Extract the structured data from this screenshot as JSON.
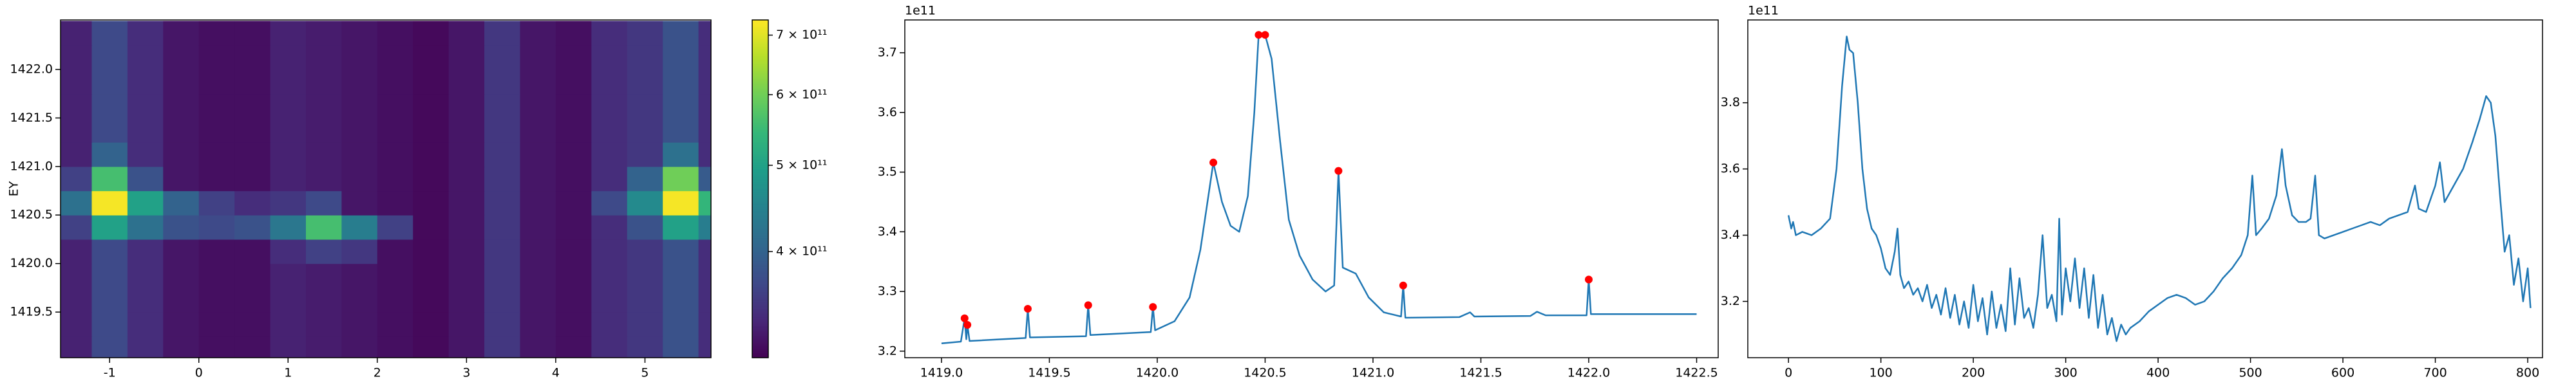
{
  "chart_data": [
    {
      "type": "heatmap",
      "colormap": "viridis",
      "ylabel": "EY",
      "xlim": [
        -1.55,
        5.74
      ],
      "ylim": [
        1419.03,
        1422.51
      ],
      "xticks": [
        -1,
        0,
        1,
        2,
        3,
        4,
        5
      ],
      "yticks": [
        1419.5,
        {
          "value": 1420,
          "label": "1420.0"
        },
        1420.5,
        {
          "value": 1421,
          "label": "1421.0"
        },
        1421.5,
        {
          "value": 1422,
          "label": "1422.0"
        }
      ],
      "x": [
        -1.4,
        -1.0,
        -0.6,
        -0.2,
        0.2,
        0.6,
        1.0,
        1.4,
        1.8,
        2.2,
        2.6,
        3.0,
        3.4,
        3.8,
        4.2,
        4.6,
        5.0,
        5.4,
        5.8
      ],
      "y": [
        1419.125,
        1419.375,
        1419.625,
        1419.875,
        1420.125,
        1420.375,
        1420.625,
        1420.875,
        1421.125,
        1421.375,
        1421.625,
        1421.875,
        1422.125,
        1422.375
      ],
      "z": [
        [
          330000000000.0,
          370000000000.0,
          340000000000.0,
          320000000000.0,
          315000000000.0,
          315000000000.0,
          330000000000.0,
          325000000000.0,
          320000000000.0,
          315000000000.0,
          310000000000.0,
          320000000000.0,
          350000000000.0,
          320000000000.0,
          315000000000.0,
          340000000000.0,
          350000000000.0,
          380000000000.0,
          340000000000.0
        ],
        [
          330000000000.0,
          370000000000.0,
          340000000000.0,
          320000000000.0,
          315000000000.0,
          315000000000.0,
          330000000000.0,
          325000000000.0,
          320000000000.0,
          315000000000.0,
          310000000000.0,
          320000000000.0,
          350000000000.0,
          320000000000.0,
          315000000000.0,
          340000000000.0,
          350000000000.0,
          380000000000.0,
          340000000000.0
        ],
        [
          330000000000.0,
          370000000000.0,
          340000000000.0,
          320000000000.0,
          315000000000.0,
          315000000000.0,
          330000000000.0,
          325000000000.0,
          320000000000.0,
          315000000000.0,
          310000000000.0,
          320000000000.0,
          350000000000.0,
          320000000000.0,
          315000000000.0,
          340000000000.0,
          350000000000.0,
          380000000000.0,
          340000000000.0
        ],
        [
          330000000000.0,
          370000000000.0,
          340000000000.0,
          320000000000.0,
          315000000000.0,
          315000000000.0,
          330000000000.0,
          325000000000.0,
          320000000000.0,
          315000000000.0,
          310000000000.0,
          320000000000.0,
          350000000000.0,
          320000000000.0,
          315000000000.0,
          340000000000.0,
          350000000000.0,
          380000000000.0,
          340000000000.0
        ],
        [
          330000000000.0,
          370000000000.0,
          340000000000.0,
          320000000000.0,
          315000000000.0,
          315000000000.0,
          340000000000.0,
          360000000000.0,
          350000000000.0,
          315000000000.0,
          310000000000.0,
          320000000000.0,
          350000000000.0,
          320000000000.0,
          315000000000.0,
          340000000000.0,
          350000000000.0,
          380000000000.0,
          340000000000.0
        ],
        [
          360000000000.0,
          500000000000.0,
          420000000000.0,
          380000000000.0,
          370000000000.0,
          380000000000.0,
          430000000000.0,
          560000000000.0,
          440000000000.0,
          360000000000.0,
          310000000000.0,
          320000000000.0,
          350000000000.0,
          320000000000.0,
          315000000000.0,
          340000000000.0,
          380000000000.0,
          500000000000.0,
          440000000000.0
        ],
        [
          420000000000.0,
          720000000000.0,
          500000000000.0,
          400000000000.0,
          360000000000.0,
          340000000000.0,
          350000000000.0,
          370000000000.0,
          320000000000.0,
          315000000000.0,
          310000000000.0,
          320000000000.0,
          350000000000.0,
          320000000000.0,
          315000000000.0,
          370000000000.0,
          460000000000.0,
          720000000000.0,
          540000000000.0
        ],
        [
          360000000000.0,
          560000000000.0,
          380000000000.0,
          320000000000.0,
          315000000000.0,
          315000000000.0,
          330000000000.0,
          325000000000.0,
          320000000000.0,
          315000000000.0,
          310000000000.0,
          320000000000.0,
          350000000000.0,
          320000000000.0,
          315000000000.0,
          340000000000.0,
          400000000000.0,
          600000000000.0,
          390000000000.0
        ],
        [
          330000000000.0,
          400000000000.0,
          340000000000.0,
          320000000000.0,
          315000000000.0,
          315000000000.0,
          330000000000.0,
          325000000000.0,
          320000000000.0,
          315000000000.0,
          310000000000.0,
          320000000000.0,
          350000000000.0,
          320000000000.0,
          315000000000.0,
          340000000000.0,
          350000000000.0,
          420000000000.0,
          340000000000.0
        ],
        [
          330000000000.0,
          370000000000.0,
          340000000000.0,
          320000000000.0,
          315000000000.0,
          315000000000.0,
          330000000000.0,
          325000000000.0,
          320000000000.0,
          315000000000.0,
          310000000000.0,
          320000000000.0,
          350000000000.0,
          320000000000.0,
          315000000000.0,
          340000000000.0,
          350000000000.0,
          380000000000.0,
          340000000000.0
        ],
        [
          330000000000.0,
          370000000000.0,
          340000000000.0,
          320000000000.0,
          315000000000.0,
          315000000000.0,
          330000000000.0,
          325000000000.0,
          320000000000.0,
          315000000000.0,
          310000000000.0,
          320000000000.0,
          350000000000.0,
          320000000000.0,
          315000000000.0,
          340000000000.0,
          350000000000.0,
          380000000000.0,
          340000000000.0
        ],
        [
          330000000000.0,
          370000000000.0,
          340000000000.0,
          320000000000.0,
          315000000000.0,
          315000000000.0,
          330000000000.0,
          325000000000.0,
          320000000000.0,
          315000000000.0,
          310000000000.0,
          320000000000.0,
          350000000000.0,
          320000000000.0,
          315000000000.0,
          340000000000.0,
          350000000000.0,
          380000000000.0,
          340000000000.0
        ],
        [
          330000000000.0,
          370000000000.0,
          340000000000.0,
          320000000000.0,
          315000000000.0,
          315000000000.0,
          330000000000.0,
          325000000000.0,
          320000000000.0,
          315000000000.0,
          310000000000.0,
          320000000000.0,
          350000000000.0,
          320000000000.0,
          315000000000.0,
          340000000000.0,
          350000000000.0,
          380000000000.0,
          340000000000.0
        ],
        [
          330000000000.0,
          370000000000.0,
          340000000000.0,
          320000000000.0,
          315000000000.0,
          315000000000.0,
          330000000000.0,
          325000000000.0,
          320000000000.0,
          315000000000.0,
          310000000000.0,
          320000000000.0,
          350000000000.0,
          320000000000.0,
          315000000000.0,
          340000000000.0,
          350000000000.0,
          380000000000.0,
          340000000000.0
        ]
      ],
      "colorbar": {
        "scale": "log",
        "clim": [
          304000000000.0,
          728000000000.0
        ],
        "ticks": [
          {
            "value": 400000000000.0,
            "label": "4 × 10¹¹"
          },
          {
            "value": 500000000000.0,
            "label": "5 × 10¹¹"
          },
          {
            "value": 600000000000.0,
            "label": "6 × 10¹¹"
          },
          {
            "value": 700000000000.0,
            "label": "7 × 10¹¹"
          }
        ]
      }
    },
    {
      "type": "line",
      "offset_label": "1e11",
      "xlim": [
        1418.83,
        1422.6
      ],
      "ylim": [
        3.189,
        3.755
      ],
      "xticks": [
        {
          "value": 1419,
          "label": "1419.0"
        },
        1419.5,
        {
          "value": 1420,
          "label": "1420.0"
        },
        1420.5,
        {
          "value": 1421,
          "label": "1421.0"
        },
        1421.5,
        {
          "value": 1422,
          "label": "1422.0"
        },
        1422.5
      ],
      "yticks": [
        3.2,
        3.3,
        3.4,
        3.5,
        3.6,
        3.7
      ],
      "series": [
        {
          "mode": "line",
          "color": "#1f77b4",
          "x": [
            1419.0,
            1419.09,
            1419.107,
            1419.115,
            1419.12,
            1419.13,
            1419.39,
            1419.4,
            1419.41,
            1419.67,
            1419.68,
            1419.69,
            1419.97,
            1419.98,
            1419.99,
            1420.08,
            1420.15,
            1420.2,
            1420.26,
            1420.3,
            1420.34,
            1420.38,
            1420.42,
            1420.45,
            1420.47,
            1420.5,
            1420.53,
            1420.57,
            1420.61,
            1420.66,
            1420.72,
            1420.78,
            1420.82,
            1420.84,
            1420.86,
            1420.92,
            1420.98,
            1421.05,
            1421.13,
            1421.14,
            1421.15,
            1421.4,
            1421.45,
            1421.47,
            1421.73,
            1421.76,
            1421.8,
            1421.99,
            1422.0,
            1422.01,
            1422.2,
            1422.5
          ],
          "values": [
            3.213,
            3.216,
            3.255,
            3.22,
            3.244,
            3.217,
            3.222,
            3.271,
            3.223,
            3.225,
            3.277,
            3.227,
            3.232,
            3.274,
            3.235,
            3.25,
            3.29,
            3.37,
            3.516,
            3.45,
            3.41,
            3.4,
            3.46,
            3.6,
            3.73,
            3.73,
            3.69,
            3.55,
            3.42,
            3.36,
            3.32,
            3.3,
            3.31,
            3.502,
            3.34,
            3.33,
            3.29,
            3.265,
            3.258,
            3.31,
            3.256,
            3.257,
            3.265,
            3.258,
            3.259,
            3.266,
            3.26,
            3.26,
            3.32,
            3.262,
            3.262,
            3.262
          ]
        },
        {
          "mode": "markers",
          "color": "#ff0000",
          "x": [
            1419.107,
            1419.12,
            1419.4,
            1419.68,
            1419.98,
            1420.26,
            1420.47,
            1420.5,
            1420.84,
            1421.14,
            1422.0
          ],
          "values": [
            3.255,
            3.244,
            3.271,
            3.277,
            3.274,
            3.516,
            3.73,
            3.73,
            3.502,
            3.31,
            3.32
          ]
        }
      ]
    },
    {
      "type": "line",
      "offset_label": "1e11",
      "xlim": [
        -44,
        816
      ],
      "ylim": [
        3.03,
        4.05
      ],
      "xticks": [
        0,
        100,
        200,
        300,
        400,
        500,
        600,
        700,
        800
      ],
      "yticks": [
        3.2,
        3.4,
        3.6,
        3.8
      ],
      "series": [
        {
          "mode": "line",
          "color": "#1f77b4",
          "x": [
            0,
            3,
            5,
            8,
            15,
            25,
            35,
            45,
            52,
            58,
            63,
            66,
            70,
            75,
            80,
            85,
            90,
            95,
            100,
            105,
            110,
            115,
            118,
            121,
            125,
            130,
            135,
            140,
            145,
            150,
            155,
            160,
            165,
            170,
            175,
            180,
            185,
            190,
            195,
            200,
            205,
            210,
            215,
            220,
            225,
            230,
            235,
            240,
            245,
            250,
            255,
            260,
            265,
            270,
            275,
            280,
            285,
            290,
            293,
            296,
            300,
            305,
            310,
            315,
            320,
            325,
            330,
            335,
            340,
            345,
            350,
            355,
            360,
            365,
            370,
            380,
            390,
            400,
            410,
            420,
            430,
            440,
            450,
            460,
            470,
            480,
            490,
            497,
            502,
            506,
            512,
            520,
            528,
            534,
            538,
            545,
            552,
            560,
            565,
            570,
            574,
            580,
            590,
            600,
            610,
            620,
            630,
            640,
            650,
            660,
            670,
            678,
            682,
            690,
            700,
            705,
            710,
            720,
            730,
            740,
            748,
            755,
            760,
            765,
            770,
            775,
            780,
            785,
            790,
            795,
            800,
            803
          ],
          "values": [
            3.46,
            3.42,
            3.44,
            3.4,
            3.41,
            3.4,
            3.42,
            3.45,
            3.6,
            3.85,
            4.0,
            3.96,
            3.95,
            3.8,
            3.6,
            3.48,
            3.42,
            3.4,
            3.36,
            3.3,
            3.28,
            3.35,
            3.42,
            3.28,
            3.24,
            3.26,
            3.22,
            3.24,
            3.2,
            3.25,
            3.18,
            3.22,
            3.16,
            3.24,
            3.15,
            3.22,
            3.13,
            3.2,
            3.12,
            3.25,
            3.14,
            3.21,
            3.1,
            3.23,
            3.12,
            3.19,
            3.11,
            3.3,
            3.13,
            3.27,
            3.15,
            3.18,
            3.12,
            3.22,
            3.4,
            3.18,
            3.22,
            3.14,
            3.45,
            3.16,
            3.3,
            3.2,
            3.33,
            3.18,
            3.3,
            3.15,
            3.28,
            3.12,
            3.22,
            3.1,
            3.15,
            3.08,
            3.13,
            3.1,
            3.12,
            3.14,
            3.17,
            3.19,
            3.21,
            3.22,
            3.21,
            3.19,
            3.2,
            3.23,
            3.27,
            3.3,
            3.34,
            3.4,
            3.58,
            3.4,
            3.42,
            3.45,
            3.52,
            3.66,
            3.55,
            3.46,
            3.44,
            3.44,
            3.45,
            3.58,
            3.4,
            3.39,
            3.4,
            3.41,
            3.42,
            3.43,
            3.44,
            3.43,
            3.45,
            3.46,
            3.47,
            3.55,
            3.48,
            3.47,
            3.55,
            3.62,
            3.5,
            3.55,
            3.6,
            3.68,
            3.75,
            3.82,
            3.8,
            3.7,
            3.52,
            3.35,
            3.4,
            3.25,
            3.33,
            3.2,
            3.3,
            3.18
          ]
        }
      ]
    }
  ]
}
